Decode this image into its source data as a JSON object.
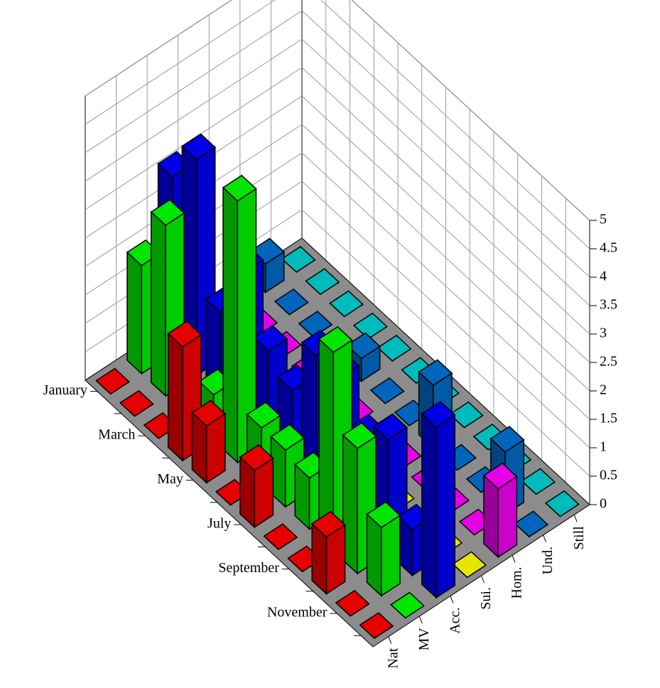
{
  "chart_data": {
    "type": "bar3d",
    "categories": [
      "January",
      null,
      "March",
      null,
      "May",
      null,
      "July",
      null,
      "September",
      null,
      "November",
      null
    ],
    "series": [
      {
        "name": "Nat",
        "color": "#ff0000",
        "values": [
          0,
          0,
          0,
          2,
          1,
          0,
          1,
          0,
          0,
          1,
          0,
          0
        ]
      },
      {
        "name": "MV",
        "color": "#00ff00",
        "values": [
          1.9,
          3,
          0,
          0.8,
          4.6,
          1,
          1,
          0.9,
          3.5,
          2.2,
          1.2,
          0
        ]
      },
      {
        "name": "Acc.",
        "color": "#0000ff",
        "values": [
          3.1,
          3.8,
          1.5,
          2.6,
          1.6,
          1.3,
          2.3,
          2.3,
          1.6,
          2,
          0.8,
          3
        ]
      },
      {
        "name": "Sui.",
        "color": "#ffff00",
        "values": [
          0,
          0.6,
          0,
          0,
          0,
          0.5,
          0,
          0.3,
          0,
          0,
          0,
          0
        ]
      },
      {
        "name": "Hom.",
        "color": "#ff00ff",
        "values": [
          0,
          0,
          0,
          0,
          0,
          0,
          0,
          0,
          0,
          0,
          0,
          1.2
        ]
      },
      {
        "name": "Und.",
        "color": "#0070d0",
        "values": [
          0.5,
          0,
          0,
          0,
          0.4,
          0,
          0,
          1.1,
          0,
          0,
          1.1,
          0
        ]
      },
      {
        "name": "Still",
        "color": "#00d0d0",
        "values": [
          0,
          0,
          0,
          0,
          0,
          0,
          0,
          0,
          0,
          0,
          0,
          0
        ]
      }
    ],
    "zlim": [
      0,
      5
    ],
    "zticks": [
      0,
      0.5,
      1,
      1.5,
      2,
      2.5,
      3,
      3.5,
      4,
      4.5,
      5
    ],
    "grid": true
  }
}
